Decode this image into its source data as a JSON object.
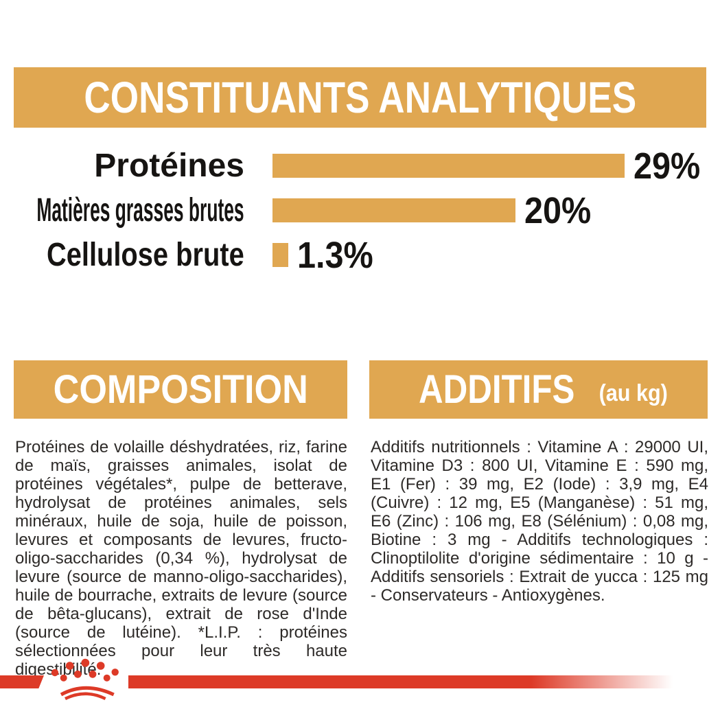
{
  "colors": {
    "gold": "#E0A751",
    "red": "#DD3A27",
    "heading_text": "#FFFFFF",
    "body_text": "#2D2A28"
  },
  "analytical_section": {
    "title": "CONSTITUANTS ANALYTIQUES",
    "rows": [
      {
        "label": "Protéines",
        "value_label": "29%",
        "pct": 29
      },
      {
        "label": "Matières grasses brutes",
        "value_label": "20%",
        "pct": 20
      },
      {
        "label": "Cellulose brute",
        "value_label": "1.3%",
        "pct": 1.3
      }
    ]
  },
  "chart_data": {
    "type": "bar",
    "orientation": "horizontal",
    "title": "CONSTITUANTS ANALYTIQUES",
    "categories": [
      "Protéines",
      "Matières grasses brutes",
      "Cellulose brute"
    ],
    "values": [
      29,
      20,
      1.3
    ],
    "value_labels": [
      "29%",
      "20%",
      "1.3%"
    ],
    "unit": "%",
    "bar_color": "#E0A751",
    "xlim": [
      0,
      32
    ],
    "grid": false,
    "legend": false
  },
  "composition_section": {
    "title": "COMPOSITION",
    "body": "Protéines de volaille déshydratées, riz, farine de maïs, graisses animales, isolat de protéines végétales*, pulpe de betterave, hydrolysat de protéines animales, sels minéraux, huile de soja, huile de poisson, levures et composants de levures, fructo-oligo-saccharides (0,34 %), hydrolysat de levure (source de manno-oligo-saccharides), huile de bourrache, extraits de levure (source de bêta-glucans), extrait de rose d'Inde (source de lutéine). *L.I.P. : protéines sélectionnées pour leur très haute digestibilité."
  },
  "additives_section": {
    "title": "ADDITIFS",
    "title_suffix": "(au kg)",
    "body": "Additifs nutritionnels : Vitamine A : 29000 UI, Vitamine D3 : 800 UI, Vitamine E : 590 mg, E1 (Fer) : 39 mg, E2 (Iode) : 3,9 mg, E4 (Cuivre) : 12 mg, E5 (Manganèse) : 51 mg, E6 (Zinc) : 106 mg, E8 (Sélénium) : 0,08 mg, Biotine : 3 mg - Additifs technologiques : Clinoptilolite d'origine sédimentaire : 10 g - Additifs sensoriels : Extrait de yucca : 125 mg - Conservateurs - Antioxygènes."
  },
  "footer": {
    "logo": "royal-canin-crown"
  }
}
